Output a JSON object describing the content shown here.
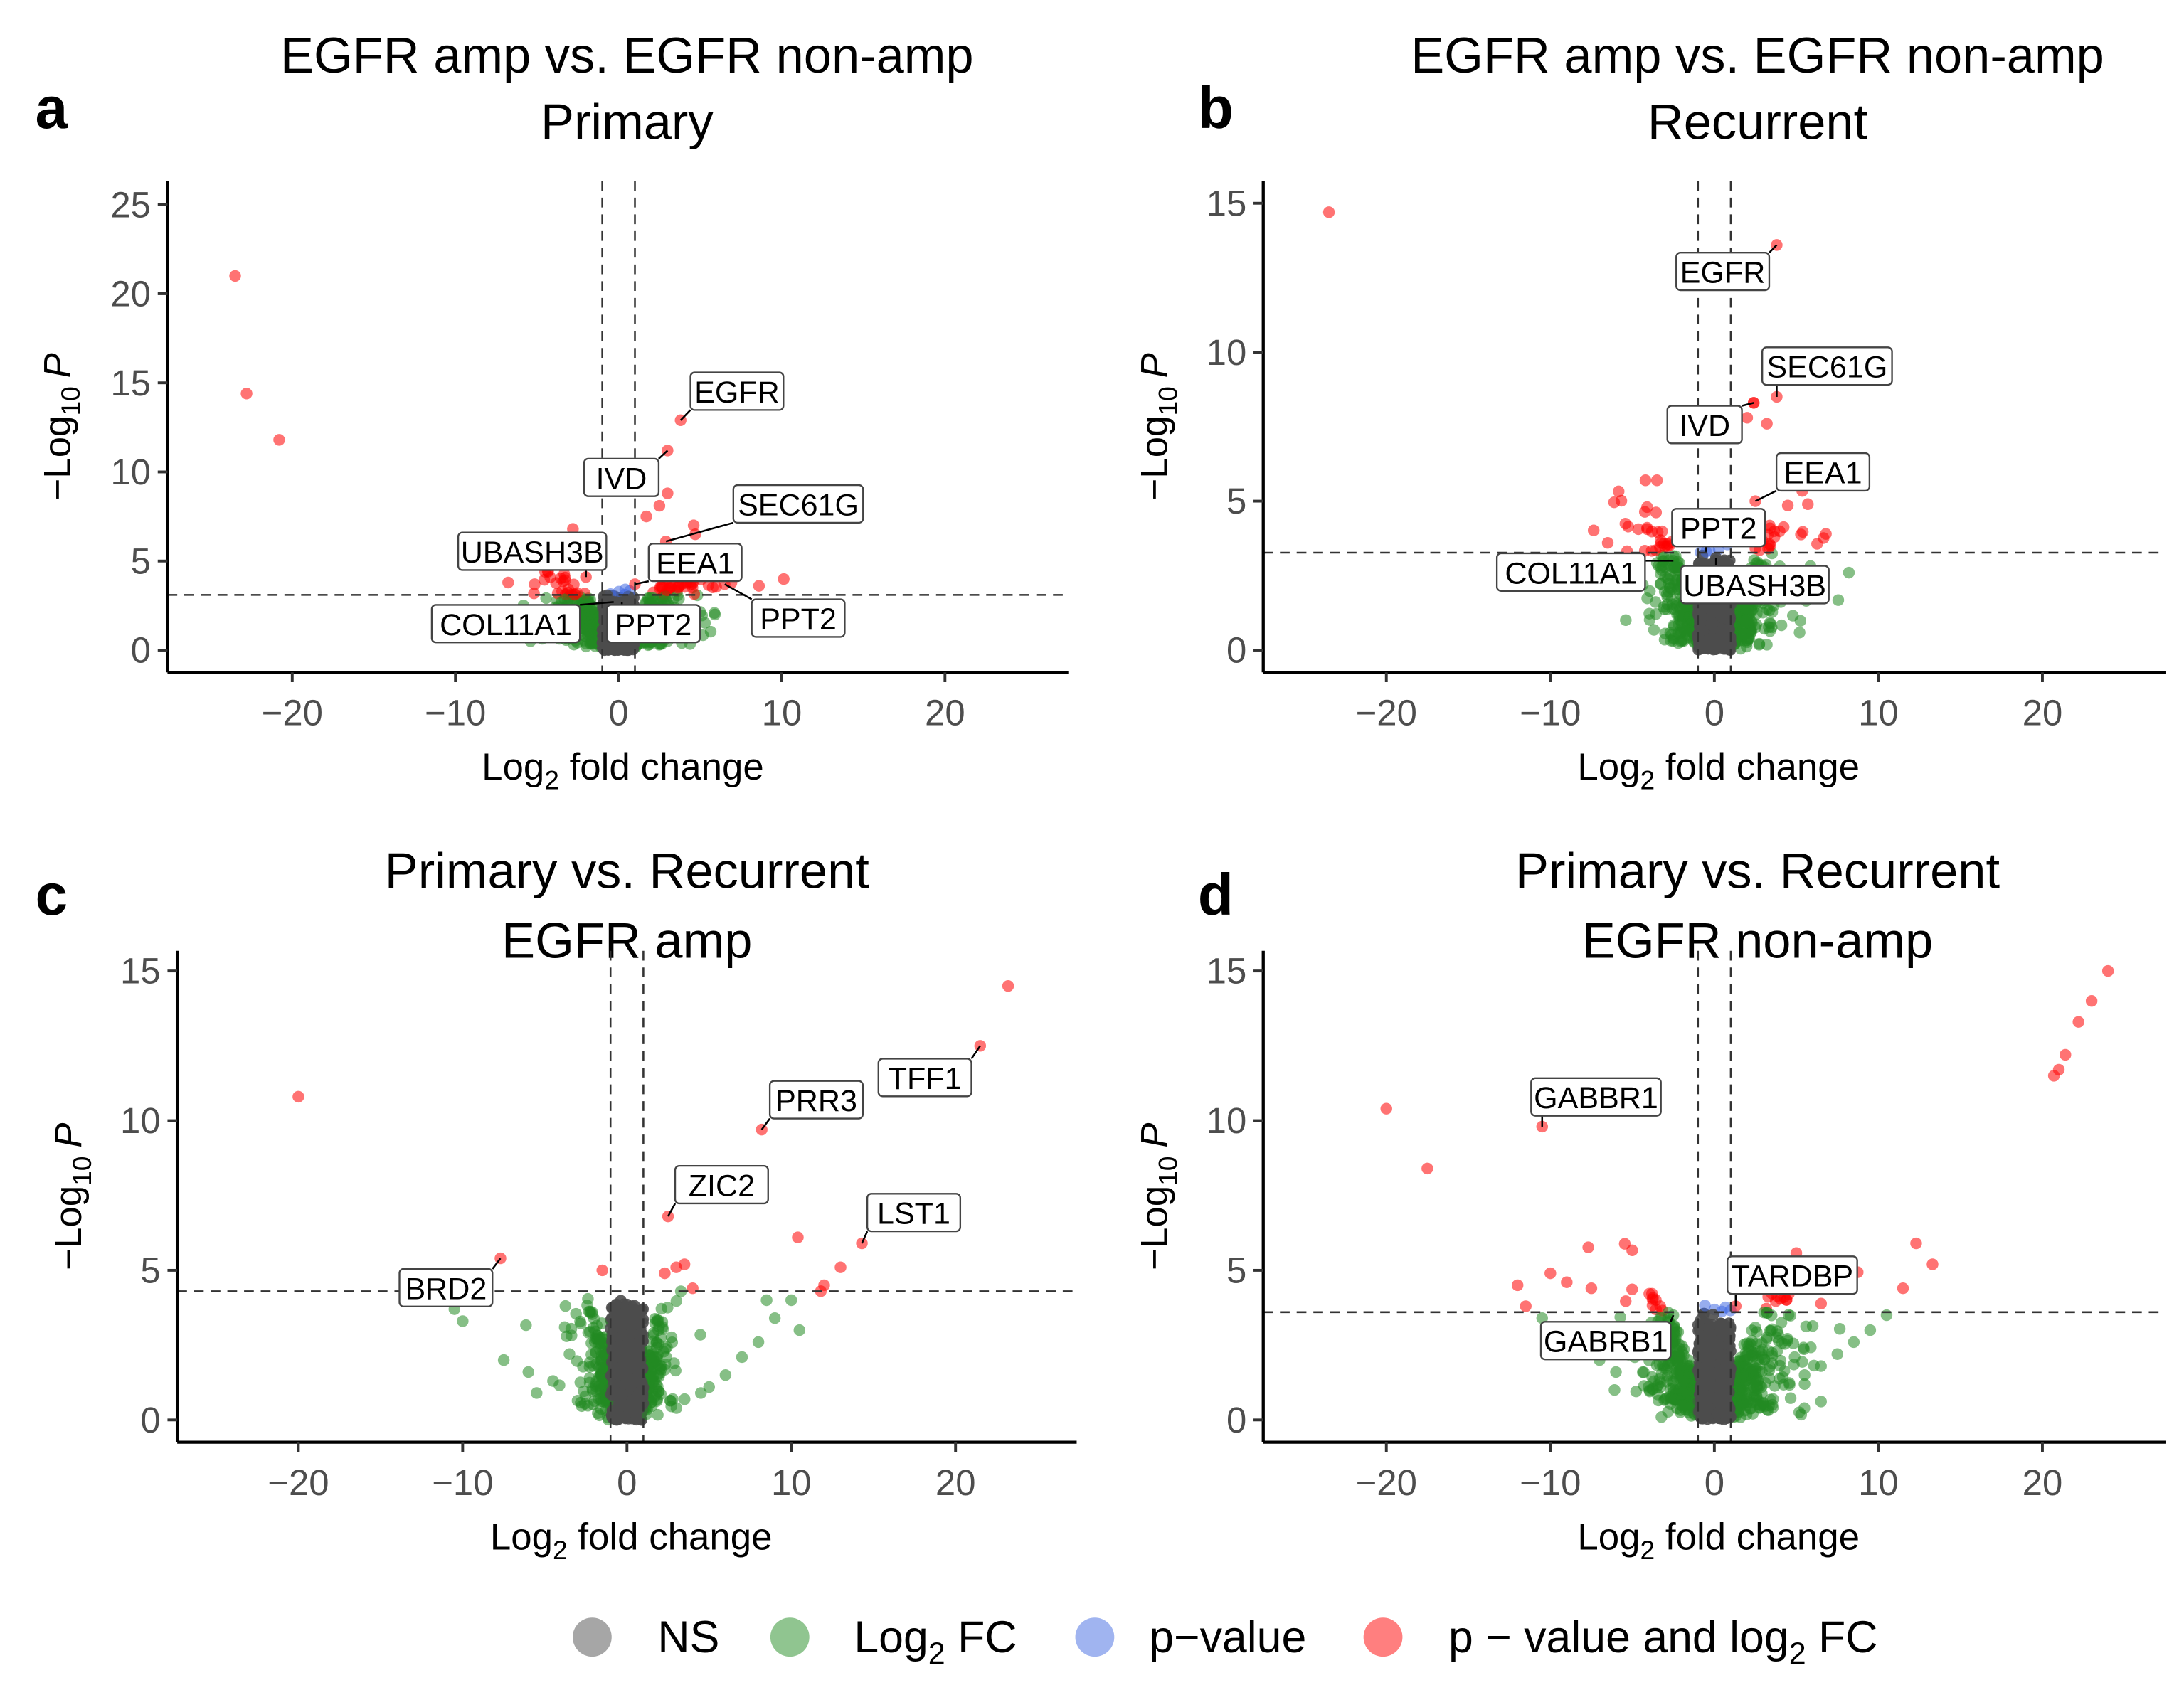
{
  "legend": {
    "items": [
      {
        "label": "NS",
        "color": "#4d4d4d"
      },
      {
        "label": "Log",
        "sub": "2",
        "suffix": " FC",
        "color": "#228b22"
      },
      {
        "label": "p−value",
        "color": "#4169e1"
      },
      {
        "label": "p − value and log",
        "sub": "2",
        "suffix": " FC",
        "color": "#ff0000"
      }
    ]
  },
  "axis_labels": {
    "y": {
      "prefix": "−Log",
      "sub": "10",
      "suffix": "P"
    },
    "x": {
      "prefix": "Log",
      "sub": "2",
      "suffix": " fold change"
    }
  },
  "chart_data": [
    {
      "type": "scatter",
      "panel": "a",
      "title": [
        "EGFR amp vs. EGFR non-amp",
        "Primary"
      ],
      "xlim": [
        -27,
        27
      ],
      "ylim": [
        -1,
        26
      ],
      "xticks": [
        -20,
        -10,
        0,
        10,
        20
      ],
      "xtick_labels": [
        "−20",
        "−10",
        "0",
        "10",
        "20"
      ],
      "yticks": [
        0,
        5,
        10,
        15,
        20,
        25
      ],
      "ytick_labels": [
        "0",
        "5",
        "10",
        "15",
        "20",
        "25"
      ],
      "fc_cutoff": 1,
      "p_cutoff": 3.1,
      "cloud": {
        "sd": 2.6,
        "ymax": 5.2,
        "spread": 1.2
      },
      "points": [
        [
          -23.5,
          21
        ],
        [
          -22.8,
          14.4
        ],
        [
          -20.8,
          11.8
        ],
        [
          3.0,
          8.8
        ],
        [
          2.5,
          8.1
        ],
        [
          1.7,
          7.5
        ],
        [
          4.6,
          7.0
        ],
        [
          4.7,
          6.5
        ],
        [
          -2.8,
          6.8
        ],
        [
          5.9,
          2.0
        ]
      ],
      "labels": [
        {
          "text": "EGFR",
          "x": 3.8,
          "y": 12.9
        },
        {
          "text": "IVD",
          "x": 3.0,
          "y": 11.2
        },
        {
          "text": "SEC61G",
          "x": 2.9,
          "y": 6.1
        },
        {
          "text": "UBASH3B",
          "x": -2.0,
          "y": 4.1
        },
        {
          "text": "EEA1",
          "x": 1.0,
          "y": 3.7
        },
        {
          "text": "COL11A1",
          "x": -0.3,
          "y": 2.7
        },
        {
          "text": "PPT2",
          "x": 0.2,
          "y": 2.7
        },
        {
          "text": "PPT2",
          "x": 6.5,
          "y": 3.7
        }
      ]
    },
    {
      "type": "scatter",
      "panel": "b",
      "title": [
        "EGFR amp vs. EGFR non-amp",
        "Recurrent"
      ],
      "xlim": [
        -27,
        27
      ],
      "ylim": [
        -1,
        16
      ],
      "xticks": [
        -20,
        -10,
        0,
        10,
        20
      ],
      "xtick_labels": [
        "−20",
        "−10",
        "0",
        "10",
        "20"
      ],
      "yticks": [
        0,
        5,
        10,
        15
      ],
      "ytick_labels": [
        "0",
        "5",
        "10",
        "15"
      ],
      "fc_cutoff": 1,
      "p_cutoff": 3.27,
      "cloud": {
        "sd": 2.5,
        "ymax": 6.2,
        "spread": 1.1
      },
      "points": [
        [
          -23.5,
          14.7
        ],
        [
          2.4,
          8.3
        ],
        [
          3.2,
          7.6
        ],
        [
          2.0,
          7.8
        ],
        [
          -4.2,
          5.7
        ],
        [
          -3.5,
          5.7
        ],
        [
          -4.1,
          4.8
        ],
        [
          -6.5,
          3.6
        ],
        [
          6.8,
          3.9
        ],
        [
          5.7,
          4.9
        ],
        [
          8.2,
          2.6
        ]
      ],
      "labels": [
        {
          "text": "EGFR",
          "x": 3.8,
          "y": 13.6
        },
        {
          "text": "SEC61G",
          "x": 3.8,
          "y": 8.5
        },
        {
          "text": "IVD",
          "x": 2.4,
          "y": 8.3
        },
        {
          "text": "EEA1",
          "x": 2.5,
          "y": 5.0
        },
        {
          "text": "PPT2",
          "x": -0.5,
          "y": 3.3
        },
        {
          "text": "COL11A1",
          "x": -2.5,
          "y": 3.0
        },
        {
          "text": "UBASH3B",
          "x": 0.1,
          "y": 3.1
        }
      ]
    },
    {
      "type": "scatter",
      "panel": "c",
      "title": [
        "Primary vs. Recurrent",
        "EGFR amp"
      ],
      "xlim": [
        -27,
        27
      ],
      "ylim": [
        -0.7,
        15.5
      ],
      "xticks": [
        -20,
        -10,
        0,
        10,
        20
      ],
      "xtick_labels": [
        "−20",
        "−10",
        "0",
        "10",
        "20"
      ],
      "yticks": [
        0,
        5,
        10,
        15
      ],
      "ytick_labels": [
        "0",
        "5",
        "10",
        "15"
      ],
      "fc_cutoff": 1,
      "p_cutoff": 4.3,
      "cloud": {
        "sd": 1.6,
        "ymax": 4.3,
        "spread": 1.6
      },
      "points": [
        [
          -20,
          10.8
        ],
        [
          23.2,
          14.5
        ],
        [
          10.4,
          6.1
        ],
        [
          13,
          5.1
        ],
        [
          12,
          4.5
        ],
        [
          3.5,
          5.2
        ],
        [
          3.0,
          5.1
        ],
        [
          2.3,
          4.9
        ],
        [
          -1.5,
          5.0
        ],
        [
          4,
          4.4
        ],
        [
          -10.5,
          3.7
        ],
        [
          -10,
          3.3
        ],
        [
          -7.5,
          2.0
        ],
        [
          -6,
          1.6
        ],
        [
          -5.5,
          0.9
        ],
        [
          -4.5,
          1.3
        ],
        [
          -3.5,
          2.2
        ],
        [
          11.8,
          4.3
        ],
        [
          10,
          4.0
        ],
        [
          8.5,
          4.0
        ],
        [
          9,
          3.4
        ],
        [
          10.5,
          3.0
        ],
        [
          7,
          2.1
        ],
        [
          6,
          1.5
        ],
        [
          5,
          1.1
        ],
        [
          4.5,
          0.9
        ],
        [
          8,
          2.6
        ]
      ],
      "labels": [
        {
          "text": "TFF1",
          "x": 21.5,
          "y": 12.5
        },
        {
          "text": "PRR3",
          "x": 8.2,
          "y": 9.7
        },
        {
          "text": "ZIC2",
          "x": 2.5,
          "y": 6.8
        },
        {
          "text": "LST1",
          "x": 14.3,
          "y": 5.9
        },
        {
          "text": "BRD2",
          "x": -7.7,
          "y": 5.4
        }
      ]
    },
    {
      "type": "scatter",
      "panel": "d",
      "title": [
        "Primary vs. Recurrent",
        "EGFR non-amp"
      ],
      "xlim": [
        -27,
        27
      ],
      "ylim": [
        -0.7,
        15.5
      ],
      "xticks": [
        -20,
        -10,
        0,
        10,
        20
      ],
      "xtick_labels": [
        "−20",
        "−10",
        "0",
        "10",
        "20"
      ],
      "yticks": [
        0,
        5,
        10,
        15
      ],
      "ytick_labels": [
        "0",
        "5",
        "10",
        "15"
      ],
      "fc_cutoff": 1,
      "p_cutoff": 3.6,
      "cloud": {
        "sd": 3.0,
        "ymax": 6.5,
        "spread": 1.0
      },
      "points": [
        [
          -20,
          10.4
        ],
        [
          -17.5,
          8.4
        ],
        [
          24,
          15
        ],
        [
          23,
          14
        ],
        [
          22.2,
          13.3
        ],
        [
          21.4,
          12.2
        ],
        [
          21,
          11.7
        ],
        [
          20.7,
          11.5
        ],
        [
          13.3,
          5.2
        ],
        [
          12.3,
          5.9
        ],
        [
          11.5,
          4.4
        ],
        [
          -12,
          4.5
        ],
        [
          -10,
          4.9
        ],
        [
          -9,
          4.6
        ],
        [
          -11.5,
          3.8
        ],
        [
          -7.5,
          4.4
        ],
        [
          10.5,
          3.5
        ],
        [
          9.5,
          3.0
        ],
        [
          8.5,
          2.6
        ],
        [
          7.5,
          2.2
        ],
        [
          6.5,
          1.8
        ],
        [
          5.5,
          1.5
        ],
        [
          -10.5,
          3.4
        ],
        [
          -9,
          2.8
        ],
        [
          -8,
          2.4
        ],
        [
          -7,
          2.0
        ],
        [
          -6,
          1.6
        ]
      ],
      "labels": [
        {
          "text": "GABBR1",
          "x": -10.5,
          "y": 9.8
        },
        {
          "text": "TARDBP",
          "x": 1.3,
          "y": 3.8
        },
        {
          "text": "GABRB1",
          "x": -2.5,
          "y": 3.5
        }
      ]
    }
  ]
}
